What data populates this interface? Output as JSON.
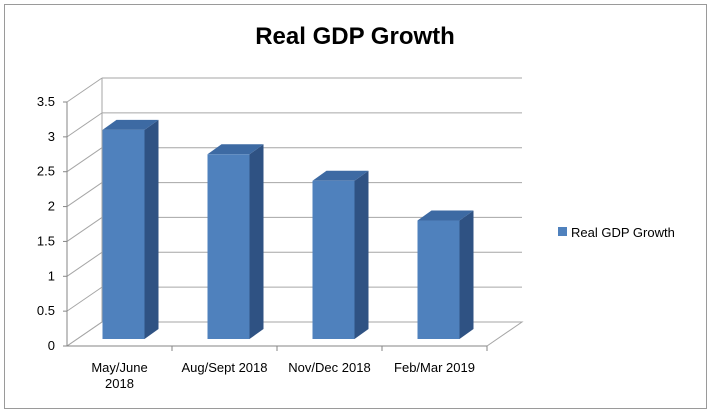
{
  "chart_data": {
    "type": "bar",
    "title": "Real GDP Growth",
    "categories": [
      "May/June 2018",
      "Aug/Sept 2018",
      "Nov/Dec 2018",
      "Feb/Mar 2019"
    ],
    "series": [
      {
        "name": "Real GDP Growth",
        "values": [
          3.1,
          2.75,
          2.37,
          1.8
        ]
      }
    ],
    "y_ticks": [
      "0",
      "0.5",
      "1",
      "1.5",
      "2",
      "2.5",
      "3",
      "3.5"
    ],
    "ylim": [
      0,
      3.5
    ],
    "grid": true,
    "legend_position": "right",
    "colors": {
      "bar_front": "#4f81bd",
      "bar_side": "#2f5283",
      "bar_top": "#3d6aa3",
      "grid": "#a6a6a6"
    }
  }
}
